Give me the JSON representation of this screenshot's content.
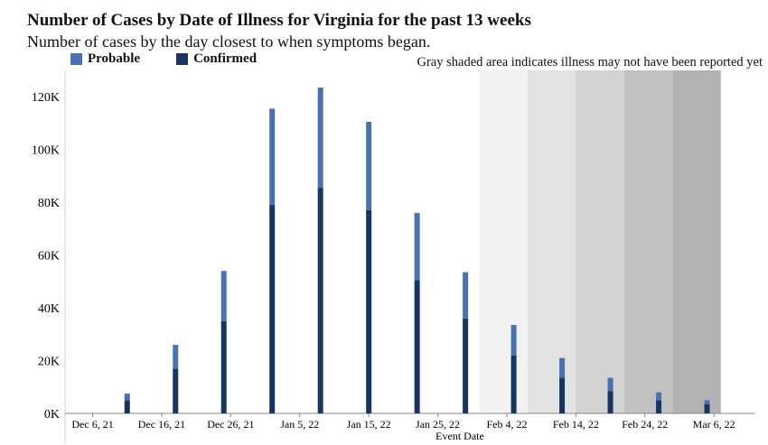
{
  "title": "Number of Cases by Date of Illness for Virginia for the past 13 weeks",
  "subtitle": "Number of cases by the day closest to when symptoms began.",
  "note": "Gray shaded area indicates illness may not have been reported yet",
  "colors": {
    "probable": "#4a72b0",
    "confirmed": "#17365f"
  },
  "chart_data": {
    "type": "bar",
    "stacked": true,
    "xlabel": "Event Date",
    "ylabel": "",
    "ylim": [
      0,
      130000
    ],
    "yticks": [
      0,
      20000,
      40000,
      60000,
      80000,
      100000,
      120000
    ],
    "ytick_labels": [
      "0K",
      "20K",
      "40K",
      "60K",
      "80K",
      "100K",
      "120K"
    ],
    "xlim": [
      "2021-12-02",
      "2022-03-12"
    ],
    "xticks": [
      "2021-12-06",
      "2021-12-16",
      "2021-12-26",
      "2022-01-05",
      "2022-01-15",
      "2022-01-25",
      "2022-02-04",
      "2022-02-14",
      "2022-02-24",
      "2022-03-06"
    ],
    "xtick_labels": [
      "Dec 6, 21",
      "Dec 16, 21",
      "Dec 26, 21",
      "Jan 5, 22",
      "Jan 15, 22",
      "Jan 25, 22",
      "Feb 4, 22",
      "Feb 14, 22",
      "Feb 24, 22",
      "Mar 6, 22"
    ],
    "dates": [
      "2021-12-11",
      "2021-12-18",
      "2021-12-25",
      "2022-01-01",
      "2022-01-08",
      "2022-01-15",
      "2022-01-22",
      "2022-01-29",
      "2022-02-05",
      "2022-02-12",
      "2022-02-19",
      "2022-02-26",
      "2022-03-05"
    ],
    "series": [
      {
        "name": "Confirmed",
        "values": [
          5000,
          17000,
          35000,
          79000,
          85500,
          77000,
          50500,
          36000,
          22000,
          13500,
          8500,
          5000,
          3500
        ]
      },
      {
        "name": "Probable",
        "values": [
          2500,
          9000,
          19000,
          36500,
          38000,
          33500,
          25500,
          17500,
          11500,
          7500,
          5000,
          3000,
          1500
        ]
      }
    ],
    "shaded_bands": [
      {
        "start": "2022-01-31",
        "end": "2022-02-07",
        "color": "#f2f2f2"
      },
      {
        "start": "2022-02-07",
        "end": "2022-02-14",
        "color": "#e3e3e3"
      },
      {
        "start": "2022-02-14",
        "end": "2022-02-21",
        "color": "#d2d2d2"
      },
      {
        "start": "2022-02-21",
        "end": "2022-02-28",
        "color": "#c1c1c1"
      },
      {
        "start": "2022-02-28",
        "end": "2022-03-07",
        "color": "#b3b3b3"
      }
    ],
    "grid": false,
    "legend": "top-left"
  }
}
